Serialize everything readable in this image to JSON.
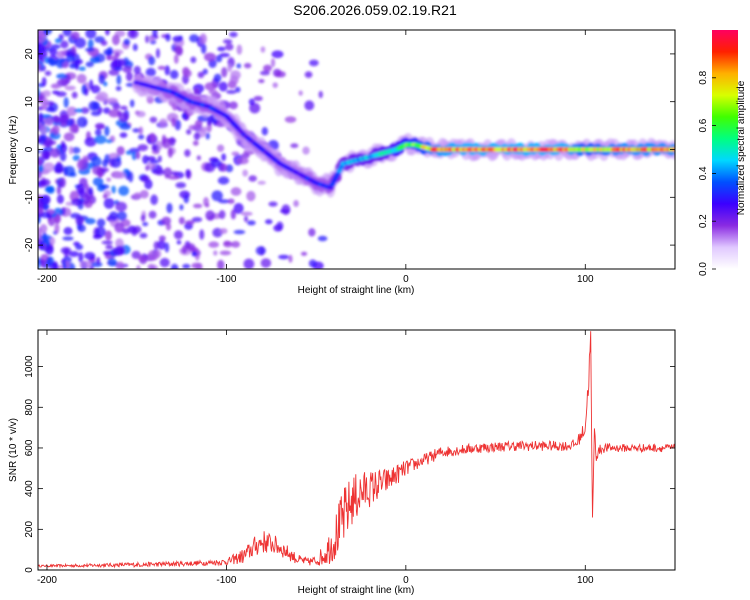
{
  "title": "S206.2026.059.02.19.R21",
  "chart_data": [
    {
      "type": "heatmap",
      "name": "spectrogram",
      "xlabel": "Height of straight line (km)",
      "ylabel": "Frequency (Hz)",
      "xlim": [
        -205,
        150
      ],
      "ylim": [
        -25,
        25
      ],
      "xticks": [
        -200,
        -100,
        0,
        100
      ],
      "yticks": [
        -20,
        -10,
        0,
        10,
        20
      ],
      "colorbar": {
        "label": "Normalized spectral amplitude",
        "range": [
          0.0,
          1.0
        ],
        "ticks": [
          0.0,
          0.2,
          0.4,
          0.6,
          0.8
        ],
        "colors": [
          "#ffffff",
          "#e0c8ff",
          "#8a2be2",
          "#3b00ff",
          "#0050ff",
          "#00d8ff",
          "#00ff80",
          "#40ff00",
          "#d8ff00",
          "#ffb000",
          "#ff2000",
          "#ff0060"
        ]
      },
      "ridge": {
        "x": [
          -150,
          -140,
          -130,
          -120,
          -110,
          -100,
          -90,
          -80,
          -70,
          -60,
          -50,
          -42,
          -35,
          -25,
          -15,
          -5,
          0,
          5,
          15,
          30,
          50,
          70,
          90,
          100,
          120,
          150
        ],
        "y": [
          14,
          13,
          12,
          10,
          9,
          7,
          3,
          0,
          -3,
          -5,
          -7,
          -8,
          -3,
          -2,
          -1,
          0,
          1,
          1,
          0,
          0,
          0,
          0,
          0,
          0,
          0,
          0
        ],
        "amplitude": [
          0.3,
          0.3,
          0.35,
          0.35,
          0.35,
          0.3,
          0.3,
          0.3,
          0.3,
          0.3,
          0.35,
          0.35,
          0.45,
          0.5,
          0.5,
          0.6,
          0.65,
          0.7,
          0.9,
          0.95,
          0.95,
          0.95,
          0.95,
          0.8,
          0.9,
          0.9
        ]
      }
    },
    {
      "type": "line",
      "name": "snr",
      "xlabel": "Height of straight line (km)",
      "ylabel": "SNR (10 * v/v)",
      "xlim": [
        -205,
        150
      ],
      "ylim": [
        0,
        1180
      ],
      "xticks": [
        -200,
        -100,
        0,
        100
      ],
      "yticks": [
        0,
        200,
        400,
        600,
        800,
        1000
      ],
      "color": "#ee3333",
      "series": [
        {
          "name": "SNR",
          "x": [
            -205,
            -180,
            -160,
            -140,
            -120,
            -100,
            -90,
            -85,
            -80,
            -75,
            -70,
            -65,
            -60,
            -55,
            -50,
            -45,
            -40,
            -35,
            -30,
            -25,
            -20,
            -15,
            -10,
            -5,
            0,
            5,
            10,
            15,
            20,
            30,
            40,
            50,
            60,
            70,
            80,
            90,
            95,
            100,
            102,
            103,
            104,
            105,
            106,
            108,
            110,
            120,
            130,
            140,
            150
          ],
          "y": [
            20,
            22,
            25,
            28,
            32,
            40,
            70,
            110,
            140,
            130,
            110,
            80,
            50,
            40,
            45,
            80,
            150,
            250,
            340,
            380,
            400,
            420,
            440,
            470,
            500,
            520,
            540,
            560,
            580,
            590,
            600,
            605,
            610,
            610,
            610,
            610,
            620,
            700,
            950,
            1150,
            200,
            700,
            560,
            590,
            600,
            600,
            600,
            600,
            600
          ],
          "noise": [
            5,
            8,
            10,
            12,
            12,
            15,
            40,
            50,
            60,
            50,
            45,
            35,
            25,
            20,
            25,
            60,
            110,
            150,
            130,
            110,
            90,
            80,
            60,
            50,
            40,
            35,
            30,
            30,
            30,
            25,
            25,
            25,
            25,
            25,
            25,
            25,
            25,
            40,
            60,
            60,
            60,
            40,
            30,
            25,
            25,
            20,
            20,
            20,
            20
          ]
        }
      ]
    }
  ]
}
